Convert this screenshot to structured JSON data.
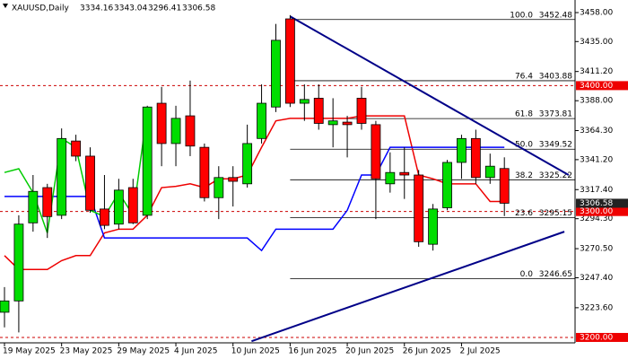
{
  "chart_data": {
    "type": "candlestick",
    "header": {
      "symbol": "XAUUSD,Daily"
    },
    "categories": [
      "19 May 2025",
      null,
      null,
      null,
      "23 May 2025",
      null,
      null,
      null,
      "29 May 2025",
      null,
      null,
      null,
      "4 Jun 2025",
      null,
      null,
      null,
      "10 Jun 2025",
      null,
      null,
      null,
      "16 Jun 2025",
      null,
      null,
      null,
      "20 Jun 2025",
      null,
      null,
      null,
      "26 Jun 2025",
      null,
      null,
      null,
      "2 Jul 2025",
      null,
      null,
      null
    ],
    "open": [
      3220,
      3229,
      3291,
      3319,
      3297,
      3356,
      3344,
      3302,
      3290,
      3319,
      3297,
      3386,
      3354,
      3376,
      3351,
      3311,
      3327,
      3322,
      3358,
      3383,
      3453,
      3386,
      3390,
      3369,
      3371,
      3390,
      3369,
      3322,
      3331,
      3329,
      3274,
      3303,
      3339,
      3358,
      3327,
      3334.16
    ],
    "high": [
      3240,
      3297,
      3329,
      3322,
      3366,
      3361,
      3351,
      3329,
      3326,
      3326,
      3384,
      3399,
      3384,
      3404,
      3354,
      3336,
      3336,
      3369,
      3401,
      3449,
      3456,
      3401,
      3401,
      3390,
      3376,
      3399,
      3372,
      3347,
      3351,
      3333,
      3306,
      3341,
      3361,
      3365,
      3346,
      3343.04
    ],
    "low": [
      3208,
      3204,
      3284,
      3279,
      3294,
      3340,
      3299,
      3286,
      3286,
      3290,
      3294,
      3336,
      3336,
      3344,
      3308,
      3294,
      3304,
      3319,
      3354,
      3379,
      3383,
      3372,
      3365,
      3351,
      3343,
      3365,
      3294,
      3315,
      3310,
      3272,
      3269,
      3301,
      3326,
      3322,
      3322,
      3296.41
    ],
    "close": [
      3229,
      3290,
      3316,
      3296,
      3358,
      3344,
      3301,
      3289,
      3317,
      3291,
      3383,
      3354,
      3374,
      3352,
      3311,
      3327,
      3324,
      3354,
      3386,
      3436,
      3386,
      3389,
      3370,
      3372,
      3369,
      3370,
      3326,
      3331,
      3329,
      3276,
      3302,
      3339,
      3358,
      3327,
      3336,
      3306.58
    ],
    "up_color": "#00dd00",
    "down_color": "#ff0000",
    "series": [
      {
        "color": "#ee0000",
        "values": [
          3265,
          3254,
          3254,
          3254,
          3261,
          3265,
          3265,
          3283,
          3286,
          3286,
          3297,
          3319,
          3320,
          3322,
          3319,
          3326,
          3326,
          3329,
          3351,
          3372,
          3374,
          3374,
          3374,
          3374,
          3374,
          3376,
          3376,
          3376,
          3376,
          3329,
          3326,
          3322,
          3322,
          3322,
          3308,
          3308
        ]
      },
      {
        "color": "#0000ff",
        "values": [
          3312,
          3312,
          3312,
          3312,
          3312,
          3312,
          3312,
          3279,
          3279,
          3279,
          3279,
          3279,
          3279,
          3279,
          3279,
          3279,
          3279,
          3279,
          3269,
          3286,
          3286,
          3286,
          3286,
          3286,
          3301,
          3329,
          3329,
          3351,
          3351,
          3351,
          3351,
          3351,
          3351,
          3351,
          3351,
          3351
        ]
      },
      {
        "color": "#00cc00",
        "values": [
          3331,
          3334,
          3315,
          3283,
          3358,
          3351,
          3301,
          3296,
          3315,
          3297,
          3380,
          null,
          null,
          null,
          null,
          null,
          null,
          null,
          null,
          null,
          null,
          null,
          null,
          null,
          null,
          null,
          null,
          null,
          null,
          null,
          null,
          null,
          null,
          null,
          null,
          null
        ]
      }
    ],
    "fib_levels": [
      {
        "ratio": "100.0",
        "value": 3452.48
      },
      {
        "ratio": "76.4",
        "value": 3403.88
      },
      {
        "ratio": "61.8",
        "value": 3373.81
      },
      {
        "ratio": "50.0",
        "value": 3349.52
      },
      {
        "ratio": "38.2",
        "value": 3325.22
      },
      {
        "ratio": "23.6",
        "value": 3295.15
      },
      {
        "ratio": "0.0",
        "value": 3246.65
      }
    ],
    "levels": [
      {
        "value": 3400,
        "label": "3400.00"
      },
      {
        "value": 3300,
        "label": "3300.00"
      },
      {
        "value": 3200,
        "label": "3200.00"
      }
    ],
    "trendlines": [
      {
        "color": "#000088",
        "x": [
          20,
          39.5
        ],
        "y": [
          3455,
          3329
        ]
      },
      {
        "color": "#000088",
        "x": [
          17.3,
          39.2
        ],
        "y": [
          3197,
          3284
        ]
      }
    ],
    "ylim": [
      3190,
      3468
    ],
    "yticks": [
      {
        "value": 3223.6,
        "label": "3223.60"
      },
      {
        "value": 3247.4,
        "label": "3247.40"
      },
      {
        "value": 3270.5,
        "label": "3270.50"
      },
      {
        "value": 3294.3,
        "label": "3294.30"
      },
      {
        "value": 3317.4,
        "label": "3317.40"
      },
      {
        "value": 3341.2,
        "label": "3341.20"
      },
      {
        "value": 3364.3,
        "label": "3364.30"
      },
      {
        "value": 3388,
        "label": "3388.00"
      },
      {
        "value": 3411.2,
        "label": "3411.20"
      },
      {
        "value": 3435,
        "label": "3435.00"
      },
      {
        "value": 3458,
        "label": "3458.00"
      }
    ]
  }
}
